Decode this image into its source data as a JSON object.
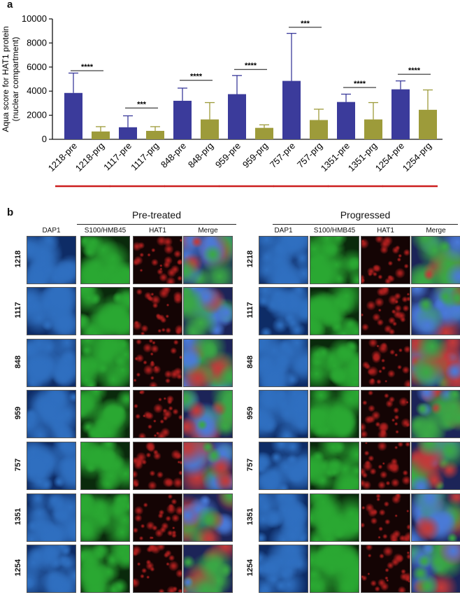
{
  "panel_a_label": "a",
  "panel_b_label": "b",
  "chart_data": {
    "type": "bar",
    "ylabel_line1": "Aqua score for HAT1 protein",
    "ylabel_line2": "(nuclear compartment)",
    "ylim": [
      0,
      10000
    ],
    "yticks": [
      "0",
      "2000",
      "4000",
      "6000",
      "8000",
      "10000"
    ],
    "ytick_values": [
      0,
      2000,
      4000,
      6000,
      8000,
      10000
    ],
    "categories": [
      "1218-pre",
      "1218-prg",
      "1117-pre",
      "1117-prg",
      "848-pre",
      "848-prg",
      "959-pre",
      "959-prg",
      "757-pre",
      "757-prg",
      "1351-pre",
      "1351-prg",
      "1254-pre",
      "1254-prg"
    ],
    "values": [
      3850,
      650,
      1000,
      700,
      3200,
      1650,
      3750,
      950,
      4850,
      1600,
      3100,
      1650,
      4150,
      2450
    ],
    "errors": [
      1650,
      400,
      950,
      350,
      1050,
      1400,
      1550,
      250,
      3950,
      900,
      650,
      1400,
      700,
      1650
    ],
    "colors": {
      "pre": "#3b3b9b",
      "prg": "#9d9b3a",
      "underline": "#cc1f1f"
    },
    "significance": [
      {
        "pair": [
          0,
          1
        ],
        "label": "****",
        "y": 5700
      },
      {
        "pair": [
          2,
          3
        ],
        "label": "***",
        "y": 2600
      },
      {
        "pair": [
          4,
          5
        ],
        "label": "****",
        "y": 4900
      },
      {
        "pair": [
          6,
          7
        ],
        "label": "****",
        "y": 5800
      },
      {
        "pair": [
          8,
          9
        ],
        "label": "***",
        "y": 9300
      },
      {
        "pair": [
          10,
          11
        ],
        "label": "****",
        "y": 4300
      },
      {
        "pair": [
          12,
          13
        ],
        "label": "****",
        "y": 5400
      }
    ],
    "grid": false
  },
  "images": {
    "pretreated_title": "Pre-treated",
    "progressed_title": "Progressed",
    "columns": [
      "DAP1",
      "S100/HMB45",
      "HAT1",
      "Merge"
    ],
    "rows": [
      "1218",
      "1117",
      "848",
      "959",
      "757",
      "1351",
      "1254"
    ],
    "channel_colors": {
      "DAP1": "#2f6fc0",
      "S100/HMB45": "#2aa832",
      "HAT1": "#b3201f",
      "Merge": "#3a58a8"
    }
  }
}
